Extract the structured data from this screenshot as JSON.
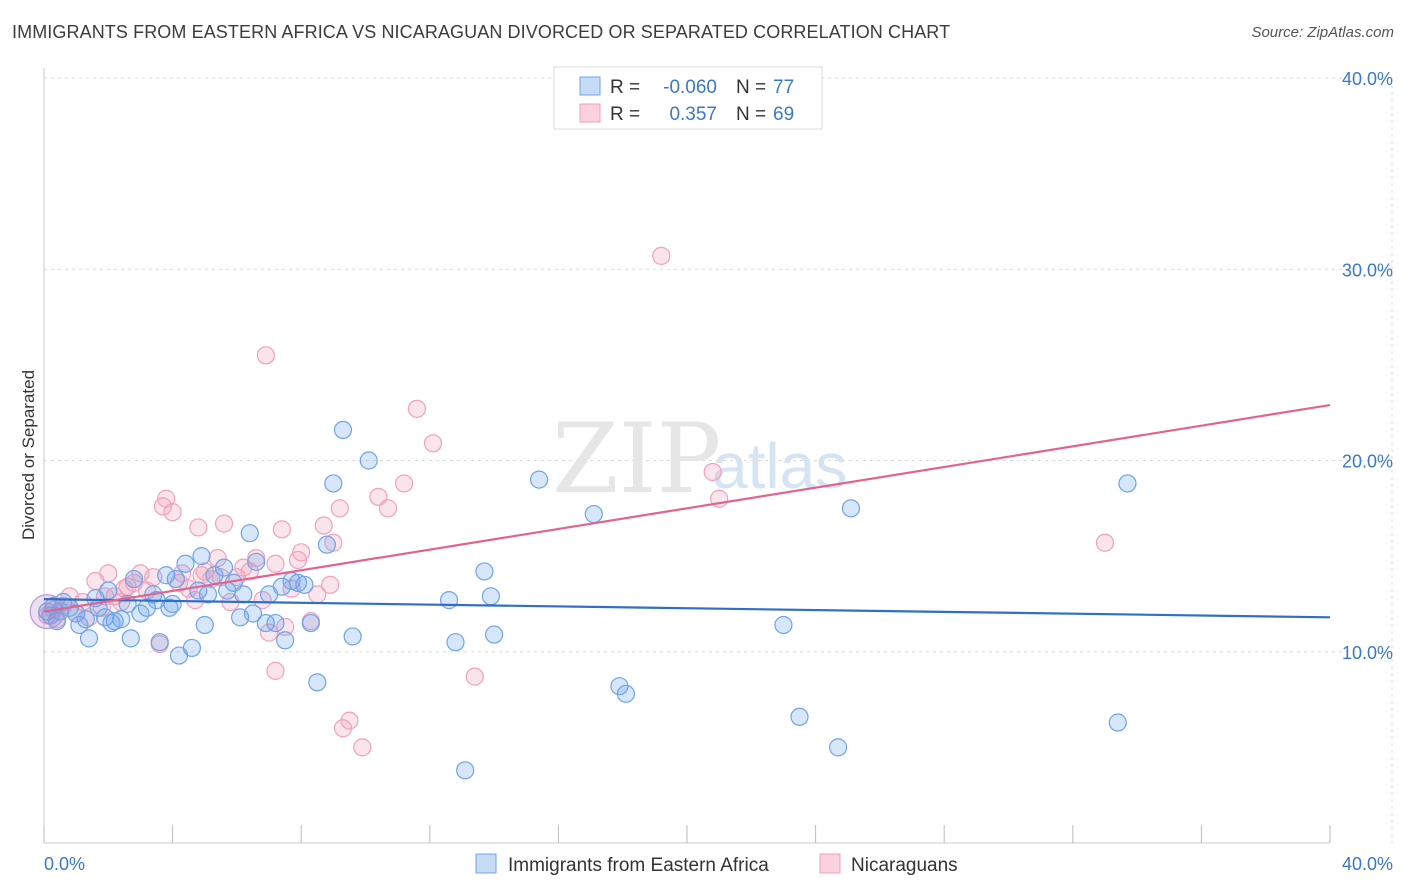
{
  "title": "IMMIGRANTS FROM EASTERN AFRICA VS NICARAGUAN DIVORCED OR SEPARATED CORRELATION CHART",
  "source": "Source: ZipAtlas.com",
  "watermark": {
    "zip": "ZIP",
    "atlas": "atlas"
  },
  "colors": {
    "blue": "#6fa4e8",
    "blue_line": "#2f6fc9",
    "pink": "#f2a0bb",
    "pink_line": "#e0648f",
    "axis_text": "#3a78c9",
    "grid": "#d9d9d9"
  },
  "legend": {
    "series1": {
      "r_label": "R =",
      "r_value": "-0.060",
      "n_label": "N =",
      "n_value": "77"
    },
    "series2": {
      "r_label": "R =",
      "r_value": "0.357",
      "n_label": "N =",
      "n_value": "69"
    }
  },
  "chart_data": {
    "type": "scatter",
    "title": "IMMIGRANTS FROM EASTERN AFRICA VS NICARAGUAN DIVORCED OR SEPARATED CORRELATION CHART",
    "xlabel": "",
    "ylabel": "Divorced or Separated",
    "xlim": [
      0,
      40
    ],
    "ylim": [
      0,
      40
    ],
    "x_tick_labels": [
      "0.0%",
      "40.0%"
    ],
    "y_ticks": [
      10,
      20,
      30,
      40
    ],
    "y_tick_labels": [
      "10.0%",
      "20.0%",
      "30.0%",
      "40.0%"
    ],
    "grid": true,
    "series": [
      {
        "name": "Immigrants from Eastern Africa",
        "color": "#6fa4e8",
        "trend": {
          "x": [
            0,
            40
          ],
          "y": [
            12.75,
            11.8
          ]
        },
        "points": [
          [
            0.1,
            12.1
          ],
          [
            0.2,
            11.9
          ],
          [
            0.3,
            12.4
          ],
          [
            0.5,
            12.1
          ],
          [
            0.6,
            12.6
          ],
          [
            0.8,
            12.3
          ],
          [
            1.0,
            12.0
          ],
          [
            1.1,
            11.4
          ],
          [
            1.3,
            11.7
          ],
          [
            1.4,
            10.7
          ],
          [
            1.7,
            12.3
          ],
          [
            1.9,
            11.8
          ],
          [
            2.0,
            13.2
          ],
          [
            2.2,
            11.6
          ],
          [
            2.4,
            11.7
          ],
          [
            2.6,
            12.5
          ],
          [
            2.7,
            10.7
          ],
          [
            2.8,
            13.8
          ],
          [
            3.0,
            12.0
          ],
          [
            3.2,
            12.3
          ],
          [
            3.4,
            13.0
          ],
          [
            3.5,
            12.7
          ],
          [
            3.6,
            10.5
          ],
          [
            3.8,
            14.0
          ],
          [
            4.0,
            12.5
          ],
          [
            4.1,
            13.8
          ],
          [
            4.2,
            9.8
          ],
          [
            4.4,
            14.6
          ],
          [
            4.6,
            10.2
          ],
          [
            4.8,
            13.2
          ],
          [
            4.9,
            15.0
          ],
          [
            5.1,
            13.0
          ],
          [
            5.3,
            14.0
          ],
          [
            5.6,
            14.4
          ],
          [
            5.7,
            13.2
          ],
          [
            5.9,
            13.6
          ],
          [
            6.1,
            11.8
          ],
          [
            6.2,
            13.0
          ],
          [
            6.4,
            16.2
          ],
          [
            6.5,
            12.0
          ],
          [
            6.6,
            14.7
          ],
          [
            6.9,
            11.5
          ],
          [
            7.0,
            13.0
          ],
          [
            7.2,
            11.5
          ],
          [
            7.4,
            13.4
          ],
          [
            7.5,
            10.6
          ],
          [
            7.7,
            13.7
          ],
          [
            7.9,
            13.6
          ],
          [
            8.1,
            13.5
          ],
          [
            8.3,
            11.5
          ],
          [
            8.5,
            8.4
          ],
          [
            8.8,
            15.6
          ],
          [
            9.0,
            18.8
          ],
          [
            9.3,
            21.6
          ],
          [
            9.6,
            10.8
          ],
          [
            10.1,
            20.0
          ],
          [
            12.6,
            12.7
          ],
          [
            12.8,
            10.5
          ],
          [
            13.1,
            3.8
          ],
          [
            13.7,
            14.2
          ],
          [
            13.9,
            12.9
          ],
          [
            14.0,
            10.9
          ],
          [
            15.4,
            19.0
          ],
          [
            17.1,
            17.2
          ],
          [
            17.9,
            8.2
          ],
          [
            18.1,
            7.8
          ],
          [
            23.0,
            11.4
          ],
          [
            23.5,
            6.6
          ],
          [
            24.7,
            5.0
          ],
          [
            25.1,
            17.5
          ],
          [
            33.4,
            6.3
          ],
          [
            33.7,
            18.8
          ],
          [
            0.4,
            11.6
          ],
          [
            1.6,
            12.8
          ],
          [
            2.1,
            11.5
          ],
          [
            3.9,
            12.3
          ],
          [
            5.0,
            11.4
          ]
        ]
      },
      {
        "name": "Nicaraguans",
        "color": "#f2a0bb",
        "trend": {
          "x": [
            0,
            40
          ],
          "y": [
            12.1,
            22.9
          ]
        },
        "points": [
          [
            0.1,
            11.9
          ],
          [
            0.3,
            12.2
          ],
          [
            0.4,
            11.7
          ],
          [
            0.6,
            12.4
          ],
          [
            0.8,
            12.9
          ],
          [
            1.0,
            12.0
          ],
          [
            1.2,
            12.6
          ],
          [
            1.4,
            11.8
          ],
          [
            1.6,
            13.7
          ],
          [
            1.8,
            12.3
          ],
          [
            2.0,
            14.1
          ],
          [
            2.2,
            12.9
          ],
          [
            2.4,
            12.6
          ],
          [
            2.6,
            13.4
          ],
          [
            2.8,
            13.6
          ],
          [
            3.0,
            14.1
          ],
          [
            3.2,
            13.2
          ],
          [
            3.4,
            13.9
          ],
          [
            3.6,
            10.4
          ],
          [
            3.8,
            18.0
          ],
          [
            4.0,
            17.3
          ],
          [
            4.2,
            13.6
          ],
          [
            4.3,
            14.1
          ],
          [
            4.5,
            13.3
          ],
          [
            4.7,
            12.7
          ],
          [
            4.8,
            16.5
          ],
          [
            5.0,
            14.2
          ],
          [
            5.2,
            13.8
          ],
          [
            5.4,
            14.9
          ],
          [
            5.6,
            16.7
          ],
          [
            5.8,
            12.6
          ],
          [
            6.0,
            13.9
          ],
          [
            6.2,
            14.4
          ],
          [
            6.4,
            14.2
          ],
          [
            6.6,
            14.9
          ],
          [
            6.8,
            12.7
          ],
          [
            7.0,
            11.0
          ],
          [
            7.2,
            14.6
          ],
          [
            7.4,
            16.4
          ],
          [
            7.5,
            11.3
          ],
          [
            7.7,
            13.3
          ],
          [
            7.9,
            14.8
          ],
          [
            8.0,
            15.2
          ],
          [
            8.3,
            11.6
          ],
          [
            8.5,
            13.0
          ],
          [
            8.7,
            16.6
          ],
          [
            9.0,
            15.7
          ],
          [
            9.3,
            6.0
          ],
          [
            9.5,
            6.4
          ],
          [
            9.9,
            5.0
          ],
          [
            10.4,
            18.1
          ],
          [
            10.7,
            17.5
          ],
          [
            11.2,
            18.8
          ],
          [
            11.6,
            22.7
          ],
          [
            12.1,
            20.9
          ],
          [
            13.4,
            8.7
          ],
          [
            19.2,
            30.7
          ],
          [
            20.8,
            19.4
          ],
          [
            21.0,
            18.0
          ],
          [
            33.0,
            15.7
          ],
          [
            6.9,
            25.5
          ],
          [
            3.7,
            17.6
          ],
          [
            7.2,
            9.0
          ],
          [
            2.5,
            13.3
          ],
          [
            5.5,
            13.9
          ],
          [
            1.9,
            12.9
          ],
          [
            4.9,
            14.0
          ],
          [
            8.9,
            13.5
          ],
          [
            9.2,
            17.5
          ]
        ]
      }
    ]
  },
  "bottom_legend": {
    "series1": "Immigrants from Eastern Africa",
    "series2": "Nicaraguans"
  }
}
